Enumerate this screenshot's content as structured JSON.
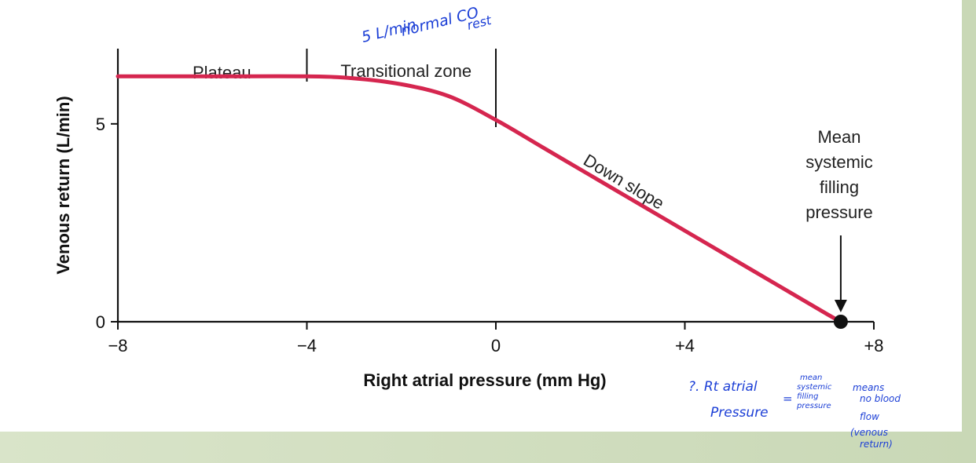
{
  "colors": {
    "curve": "#d5264f",
    "axis": "#111111",
    "handwriting": "#1c3fd6",
    "frame": "#c9d8b6"
  },
  "chart_data": {
    "type": "line",
    "title": "",
    "xlabel": "Right atrial pressure (mm Hg)",
    "ylabel": "Venous return (L/min)",
    "xlim": [
      -8,
      8
    ],
    "ylim": [
      0,
      6.9
    ],
    "x_ticks": [
      -8,
      -4,
      0,
      4,
      8
    ],
    "x_tick_labels": [
      "−8",
      "−4",
      "0",
      "+4",
      "+8"
    ],
    "y_ticks": [
      0,
      5
    ],
    "y_tick_labels": [
      "0",
      "5"
    ],
    "grid": false,
    "series": [
      {
        "x": [
          -8,
          -6,
          -4,
          -3,
          -2,
          -1,
          0,
          1,
          2,
          3,
          4,
          5,
          6,
          7,
          7.3
        ],
        "y": [
          6.2,
          6.2,
          6.2,
          6.15,
          6.0,
          5.7,
          5.1,
          4.4,
          3.7,
          3.0,
          2.3,
          1.6,
          0.9,
          0.2,
          0
        ]
      }
    ],
    "endpoint": {
      "x": 7.3,
      "y": 0
    },
    "zones": [
      {
        "label": "Plateau",
        "x_from": -8,
        "x_to": -4
      },
      {
        "label": "Transitional zone",
        "x_from": -4,
        "x_to": 0
      }
    ],
    "annotations": {
      "down_slope": "Down slope",
      "msfp": [
        "Mean",
        "systemic",
        "filling",
        "pressure"
      ]
    }
  },
  "handwriting": {
    "top_note": [
      "5 L/min",
      "normal CO",
      "rest"
    ],
    "bottom_note": {
      "lhs": [
        "?. Rt atrial",
        "Pressure"
      ],
      "eq": "=",
      "mid": [
        "mean",
        "systemic",
        "filling",
        "pressure"
      ],
      "rhs": [
        "means",
        "no blood",
        "flow",
        "(venous",
        "return)"
      ]
    }
  }
}
